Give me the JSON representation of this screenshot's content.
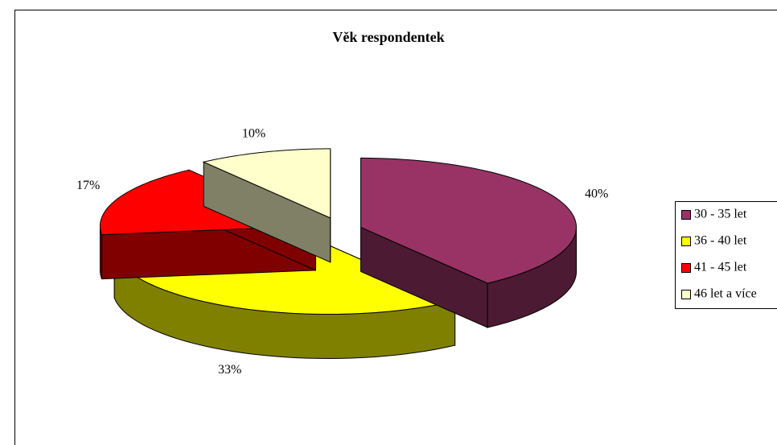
{
  "chart_data": {
    "type": "pie3d",
    "title": "Věk respondentek",
    "categories": [
      "30 - 35 let",
      "36 - 40 let",
      "41 - 45 let",
      "46 let a více"
    ],
    "values": [
      40,
      33,
      17,
      10
    ],
    "value_labels": [
      "40%",
      "33%",
      "17%",
      "10%"
    ],
    "colors": [
      "#993366",
      "#ffff00",
      "#ff0000",
      "#ffffcc"
    ],
    "legend": "right"
  }
}
